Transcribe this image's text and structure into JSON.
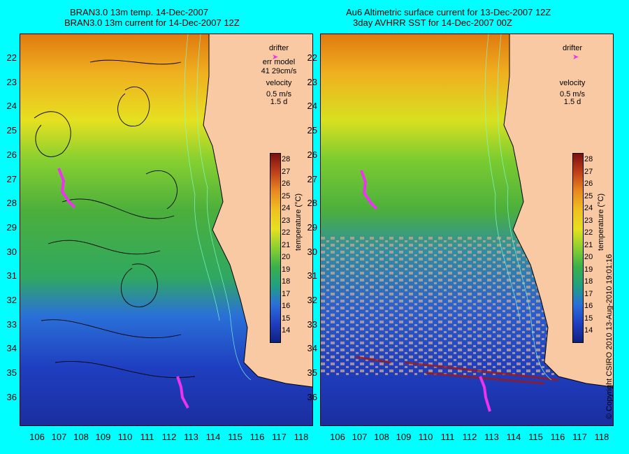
{
  "left_panel": {
    "title_line1": "BRAN3.0 13m temp. 14-Dec-2007",
    "title_line2": "BRAN3.0 13m current for 14-Dec-2007 12Z",
    "drifter_label": "drifter",
    "err_model_label": "err model",
    "err_model_value": "41 29cm/s",
    "velocity_label": "velocity",
    "velocity_scale": "0.5 m/s",
    "velocity_days": "1.5 d"
  },
  "right_panel": {
    "title_line1": "Au6 Altimetric surface current for 13-Dec-2007 12Z",
    "title_line2": "3day AVHRR SST for 14-Dec-2007 00Z",
    "drifter_label": "drifter",
    "velocity_label": "velocity",
    "velocity_scale": "0.5 m/s",
    "velocity_days": "1.5 d"
  },
  "colorbar": {
    "label": "temperature (°C)",
    "ticks": [
      "28",
      "27",
      "26",
      "25",
      "24",
      "23",
      "22",
      "21",
      "20",
      "19",
      "18",
      "17",
      "16",
      "15",
      "14"
    ]
  },
  "axes": {
    "lat_ticks": [
      "22",
      "23",
      "24",
      "25",
      "26",
      "27",
      "28",
      "29",
      "30",
      "31",
      "32",
      "33",
      "34",
      "35",
      "36"
    ],
    "lon_ticks": [
      "106",
      "107",
      "108",
      "109",
      "110",
      "111",
      "112",
      "113",
      "114",
      "115",
      "116",
      "117",
      "118"
    ]
  },
  "copyright": "© Copyright CSIRO 2010    13-Aug-2010 19:01:16",
  "colors": {
    "background": "#00ffff",
    "land": "#f9c9a4",
    "drifter": "#ee33ee",
    "warm": "#e07a10",
    "mid": "#4caf3c",
    "cold": "#2a4fd0"
  }
}
